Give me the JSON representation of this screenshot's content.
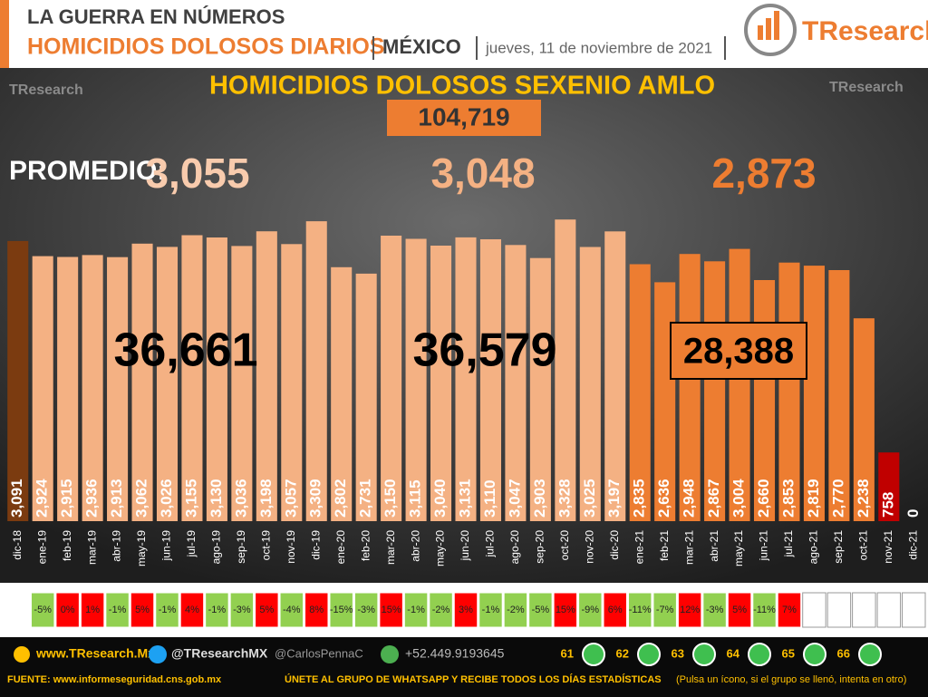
{
  "header": {
    "kicker": "LA GUERRA EN NÚMEROS",
    "headline": "HOMICIDIOS DOLOSOS DIARIOS",
    "region": "MÉXICO",
    "date": "jueves, 11 de noviembre de 2021",
    "logo": "TResearch"
  },
  "chart_data": {
    "type": "bar",
    "title": "HOMICIDIOS DOLOSOS SEXENIO AMLO",
    "total": "104,719",
    "average_label": "PROMEDIO:",
    "averages": [
      {
        "text": "3,055",
        "color": "#f8cbad"
      },
      {
        "text": "3,048",
        "color": "#f4b183"
      },
      {
        "text": "2,873",
        "color": "#ed7d31"
      }
    ],
    "period_totals": [
      "36,661",
      "36,579",
      "28,388"
    ],
    "categories": [
      "dic-18",
      "ene-19",
      "feb-19",
      "mar-19",
      "abr-19",
      "may-19",
      "jun-19",
      "jul-19",
      "ago-19",
      "sep-19",
      "oct-19",
      "nov-19",
      "dic-19",
      "ene-20",
      "feb-20",
      "mar-20",
      "abr-20",
      "may-20",
      "jun-20",
      "jul-20",
      "ago-20",
      "sep-20",
      "oct-20",
      "nov-20",
      "dic-20",
      "ene-21",
      "feb-21",
      "mar-21",
      "abr-21",
      "may-21",
      "jun-21",
      "jul-21",
      "ago-21",
      "sep-21",
      "oct-21",
      "nov-21",
      "dic-21"
    ],
    "values": [
      3091,
      2924,
      2915,
      2936,
      2913,
      3062,
      3026,
      3155,
      3130,
      3036,
      3198,
      3057,
      3309,
      2802,
      2731,
      3150,
      3115,
      3040,
      3131,
      3110,
      3047,
      2903,
      3328,
      3025,
      3197,
      2835,
      2636,
      2948,
      2867,
      3004,
      2660,
      2853,
      2819,
      2770,
      2238,
      758,
      0
    ],
    "value_labels": [
      "3,091",
      "2,924",
      "2,915",
      "2,936",
      "2,913",
      "3,062",
      "3,026",
      "3,155",
      "3,130",
      "3,036",
      "3,198",
      "3,057",
      "3,309",
      "2,802",
      "2,731",
      "3,150",
      "3,115",
      "3,040",
      "3,131",
      "3,110",
      "3,047",
      "2,903",
      "3,328",
      "3,025",
      "3,197",
      "2,835",
      "2,636",
      "2,948",
      "2,867",
      "3,004",
      "2,660",
      "2,853",
      "2,819",
      "2,770",
      "2,238",
      "758",
      "0"
    ],
    "colors": [
      "#7b3b10",
      "#f4b183",
      "#f4b183",
      "#f4b183",
      "#f4b183",
      "#f4b183",
      "#f4b183",
      "#f4b183",
      "#f4b183",
      "#f4b183",
      "#f4b183",
      "#f4b183",
      "#f4b183",
      "#f4b183",
      "#f4b183",
      "#f4b183",
      "#f4b183",
      "#f4b183",
      "#f4b183",
      "#f4b183",
      "#f4b183",
      "#f4b183",
      "#f4b183",
      "#f4b183",
      "#f4b183",
      "#ed7d31",
      "#ed7d31",
      "#ed7d31",
      "#ed7d31",
      "#ed7d31",
      "#ed7d31",
      "#ed7d31",
      "#ed7d31",
      "#ed7d31",
      "#ed7d31",
      "#c00000",
      "#ed7d31"
    ],
    "ylim": [
      0,
      3500
    ],
    "changes": {
      "values": [
        null,
        -5,
        0,
        1,
        -1,
        5,
        -1,
        4,
        -1,
        -3,
        5,
        -4,
        8,
        -15,
        -3,
        15,
        -1,
        -2,
        3,
        -1,
        -2,
        -5,
        15,
        -9,
        6,
        -11,
        -7,
        12,
        -3,
        5,
        -11,
        7,
        null,
        null,
        null,
        null,
        null
      ],
      "labels": [
        null,
        "-5%",
        "0%",
        "1%",
        "-1%",
        "5%",
        "-1%",
        "4%",
        "-1%",
        "-3%",
        "5%",
        "-4%",
        "8%",
        "-15%",
        "-3%",
        "15%",
        "-1%",
        "-2%",
        "3%",
        "-1%",
        "-2%",
        "-5%",
        "15%",
        "-9%",
        "6%",
        "-11%",
        "-7%",
        "12%",
        "-3%",
        "5%",
        "-11%",
        "7%",
        null,
        null,
        null,
        null,
        null
      ],
      "negative_color": "#92d050",
      "positive_color": "#ff0000"
    }
  },
  "footer": {
    "website": "www.TResearch.Mx",
    "twitter": "@TResearchMX",
    "twitter2": "@CarlosPennaC",
    "phone": "+52.449.9193645",
    "groups": [
      "61",
      "62",
      "63",
      "64",
      "65",
      "66"
    ],
    "source": "FUENTE: www.informeseguridad.cns.gob.mx",
    "invite": "ÚNETE AL GRUPO DE WHATSAPP Y RECIBE TODOS LOS DÍAS ESTADÍSTICAS",
    "invite_note": "(Pulsa un ícono, si el grupo se llenó, intenta en otro)"
  }
}
